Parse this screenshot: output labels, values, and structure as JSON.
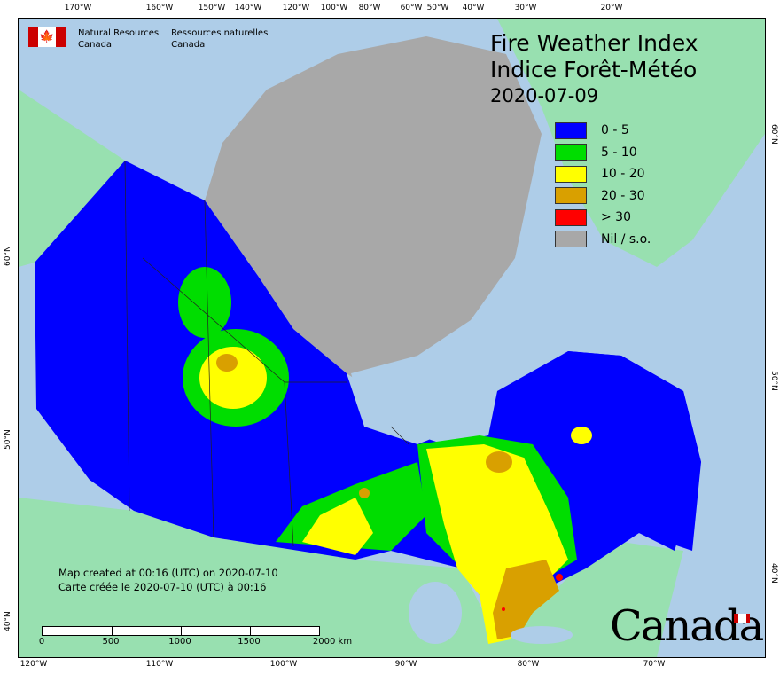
{
  "header": {
    "org_en": [
      "Natural Resources",
      "Canada"
    ],
    "org_fr": [
      "Ressources naturelles",
      "Canada"
    ],
    "title_en": "Fire Weather Index",
    "title_fr": "Indice Forêt-Météo",
    "date": "2020-07-09"
  },
  "legend": [
    {
      "label": "0 - 5",
      "color": "#0000ff"
    },
    {
      "label": "5 - 10",
      "color": "#00dd00"
    },
    {
      "label": "10 - 20",
      "color": "#ffff00"
    },
    {
      "label": "20 - 30",
      "color": "#d9a000"
    },
    {
      "label": "> 30",
      "color": "#ff0000"
    },
    {
      "label": "Nil / s.o.",
      "color": "#a8a8a8"
    }
  ],
  "credit": {
    "en": "Map created at 00:16 (UTC) on 2020-07-10",
    "fr": "Carte créée le 2020-07-10 (UTC) à 00:16"
  },
  "scale": {
    "labels": [
      "0",
      "500",
      "1000",
      "1500",
      "2000  km"
    ]
  },
  "graticule": {
    "top": [
      "170°W",
      "160°W",
      "150°W",
      "140°W",
      "120°W",
      "100°W",
      "80°W",
      "60°W",
      "50°W",
      "40°W",
      "30°W",
      "20°W"
    ],
    "bottom": [
      "120°W",
      "110°W",
      "100°W",
      "90°W",
      "80°W",
      "70°W"
    ],
    "left": [
      "60°N",
      "50°N",
      "40°N"
    ],
    "right": [
      "60°N",
      "50°N",
      "40°N"
    ]
  },
  "wordmark": "Canada",
  "colors": {
    "ocean": "#aecde8",
    "foreign_land": "#98e0b0"
  }
}
